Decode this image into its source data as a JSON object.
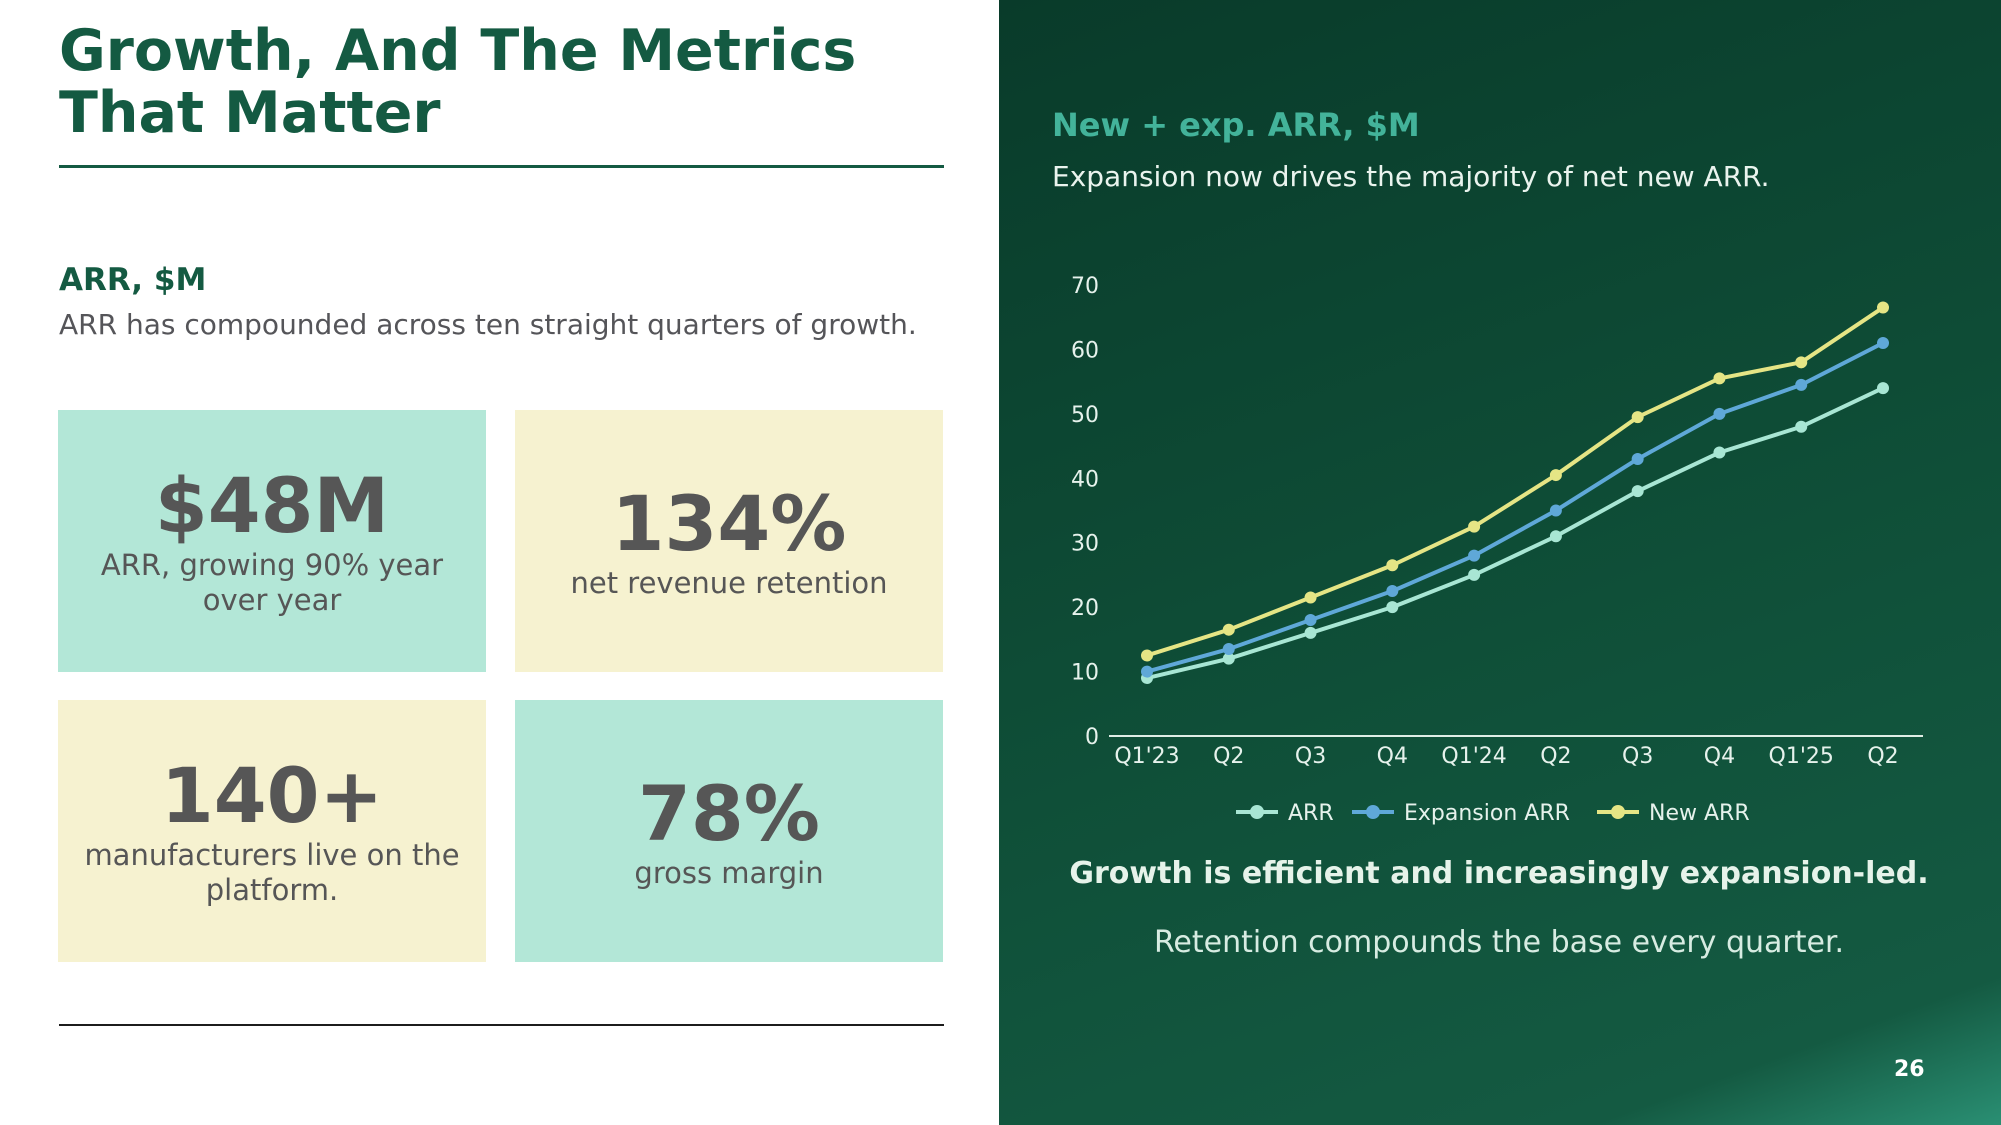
{
  "left": {
    "title": "Growth, And The Metrics That Matter",
    "section_title": "ARR, $M",
    "section_subtitle": "ARR has compounded across ten straight quarters of growth.",
    "stats": [
      {
        "value": "$48M",
        "label": "ARR, growing 90% year over year"
      },
      {
        "value": "134%",
        "label": "net revenue retention"
      },
      {
        "value": "140+",
        "label": "manufacturers live on the platform."
      },
      {
        "value": "78%",
        "label": "gross margin"
      }
    ]
  },
  "right": {
    "title": "New + exp. ARR, $M",
    "subtitle": "Expansion now drives the majority of net new ARR.",
    "footer_bold": "Growth is efficient and increasingly expansion-led.",
    "footer_sub": "Retention compounds the base every quarter."
  },
  "page_number": "26",
  "colors": {
    "accent_green": "#145a42",
    "mint": "#b3e7d7",
    "cream": "#f6f2d0",
    "series_arr": "#a8e6d4",
    "series_expansion": "#5fa8d8",
    "series_new": "#e5e585"
  },
  "chart_data": {
    "type": "line",
    "categories": [
      "Q1'23",
      "Q2",
      "Q3",
      "Q4",
      "Q1'24",
      "Q2",
      "Q3",
      "Q4",
      "Q1'25",
      "Q2"
    ],
    "series": [
      {
        "name": "ARR",
        "color": "#a8e6d4",
        "values": [
          9,
          12,
          16,
          20,
          25,
          31,
          38,
          44,
          48,
          54
        ]
      },
      {
        "name": "Expansion ARR",
        "color": "#5fa8d8",
        "values": [
          10,
          13.5,
          18,
          22.5,
          28,
          35,
          43,
          50,
          54.5,
          61
        ]
      },
      {
        "name": "New ARR",
        "color": "#e5e585",
        "values": [
          12.5,
          16.5,
          21.5,
          26.5,
          32.5,
          40.5,
          49.5,
          55.5,
          58,
          66.5
        ]
      }
    ],
    "ylim": [
      0,
      70
    ],
    "yticks": [
      0,
      10,
      20,
      30,
      40,
      50,
      60,
      70
    ],
    "grid": false,
    "legend": "bottom"
  }
}
